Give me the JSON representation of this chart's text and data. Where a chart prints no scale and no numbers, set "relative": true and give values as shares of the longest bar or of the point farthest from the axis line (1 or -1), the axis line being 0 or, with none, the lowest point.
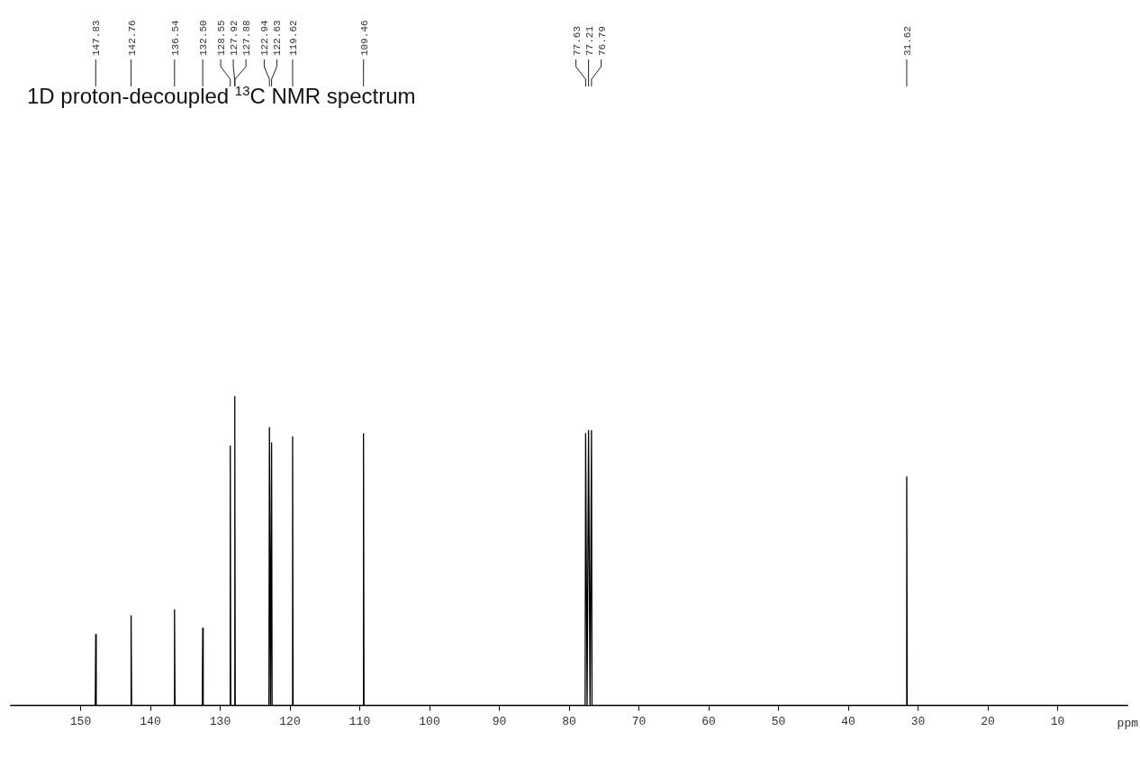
{
  "chart_data": {
    "type": "line",
    "title": "1D proton-decoupled $^{13}$C NMR spectrum",
    "xlabel": "ppm",
    "relative": true,
    "grid": false,
    "legend": false,
    "marker": "none",
    "line_style": "solid",
    "tick_labels": "x",
    "xlim": [
      160,
      0
    ],
    "xticks": [
      150,
      140,
      130,
      120,
      110,
      100,
      90,
      80,
      70,
      60,
      50,
      40,
      30,
      20,
      10
    ],
    "series": [
      {
        "color": "#000000",
        "x": [
          160,
          147.9,
          147.83,
          147.76,
          142.83,
          142.76,
          142.69,
          136.61,
          136.54,
          136.47,
          132.57,
          132.5,
          132.43,
          128.62,
          128.55,
          128.48,
          127.96,
          127.92,
          127.9,
          127.88,
          127.84,
          123.01,
          122.94,
          122.78,
          122.63,
          122.56,
          119.69,
          119.62,
          119.55,
          109.53,
          109.46,
          109.39,
          77.7,
          77.63,
          77.42,
          77.21,
          77.0,
          76.79,
          76.72,
          31.69,
          31.62,
          31.55,
          0
        ],
        "values": [
          0,
          0,
          0.23,
          0,
          0,
          0.29,
          0,
          0,
          0.31,
          0,
          0,
          0.25,
          0,
          0,
          0.84,
          0,
          0,
          1,
          0,
          0.86,
          0,
          0,
          0.9,
          0,
          0.85,
          0,
          0,
          0.87,
          0,
          0,
          0.88,
          0,
          0,
          0.88,
          0,
          0.89,
          0,
          0.89,
          0,
          0,
          0.74,
          0,
          0
        ]
      }
    ],
    "annotations": [
      "147.83",
      "142.76",
      "136.54",
      "132.50",
      "128.55",
      "127.92",
      "127.88",
      "122.94",
      "122.63",
      "119.62",
      "109.46",
      "77.63",
      "77.21",
      "76.79",
      "31.62"
    ]
  }
}
